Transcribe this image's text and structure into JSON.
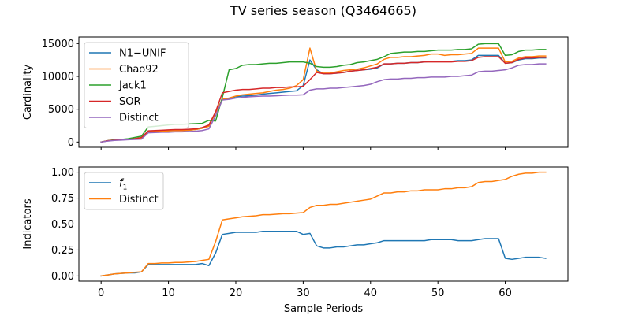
{
  "title": "TV series season (Q3464665)",
  "xlabel": "Sample Periods",
  "x_ticks": [
    0,
    10,
    20,
    30,
    40,
    50,
    60
  ],
  "chart_data": [
    {
      "type": "line",
      "ylabel": "Cardinality",
      "xlim": [
        -3.3,
        69.3
      ],
      "ylim": [
        -800,
        16000
      ],
      "y_ticks": [
        0,
        5000,
        10000,
        15000
      ],
      "legend_position": "upper left",
      "grid": false,
      "series": [
        {
          "name": "N1−UNIF",
          "color": "#1f77b4",
          "values": [
            0,
            200,
            300,
            350,
            400,
            500,
            600,
            1600,
            1600,
            1650,
            1700,
            1750,
            1750,
            1800,
            1900,
            2100,
            2400,
            4500,
            6500,
            6600,
            6900,
            7000,
            7050,
            7150,
            7300,
            7400,
            7500,
            7600,
            7700,
            7800,
            8600,
            12500,
            11000,
            10400,
            10400,
            10500,
            10600,
            10800,
            10900,
            11000,
            11100,
            11300,
            11900,
            11900,
            12000,
            12000,
            12100,
            12100,
            12200,
            12300,
            12300,
            12300,
            12300,
            12400,
            12400,
            12500,
            13200,
            13200,
            13200,
            13200,
            12000,
            12100,
            12500,
            12700,
            12700,
            12800,
            12800
          ]
        },
        {
          "name": "Chao92",
          "color": "#ff7f0e",
          "values": [
            0,
            200,
            300,
            350,
            400,
            500,
            600,
            1600,
            1600,
            1650,
            1700,
            1750,
            1750,
            1800,
            1900,
            2100,
            2400,
            4500,
            6500,
            6700,
            7000,
            7200,
            7300,
            7400,
            7500,
            7700,
            7900,
            8000,
            8200,
            8600,
            9500,
            14300,
            10800,
            10500,
            10500,
            10700,
            10900,
            11000,
            11100,
            11300,
            11600,
            11900,
            12600,
            12900,
            12900,
            13000,
            13000,
            13100,
            13200,
            13400,
            13400,
            13200,
            13300,
            13300,
            13400,
            13500,
            14300,
            14300,
            14300,
            14300,
            12200,
            12300,
            12800,
            13000,
            13000,
            13100,
            13100
          ]
        },
        {
          "name": "Jack1",
          "color": "#2ca02c",
          "values": [
            0,
            200,
            350,
            400,
            500,
            700,
            900,
            2300,
            2400,
            2500,
            2600,
            2700,
            2700,
            2750,
            2800,
            2850,
            3300,
            3200,
            6800,
            11000,
            11200,
            11700,
            11800,
            11800,
            11900,
            12000,
            12000,
            12100,
            12200,
            12200,
            12200,
            12000,
            11500,
            11400,
            11400,
            11500,
            11700,
            11800,
            12100,
            12200,
            12400,
            12600,
            13000,
            13500,
            13600,
            13700,
            13700,
            13800,
            13800,
            13900,
            14000,
            14000,
            14000,
            14100,
            14100,
            14200,
            14900,
            15000,
            15000,
            15000,
            13200,
            13300,
            13800,
            14000,
            14000,
            14100,
            14100
          ]
        },
        {
          "name": "SOR",
          "color": "#d62728",
          "values": [
            0,
            200,
            300,
            350,
            400,
            500,
            700,
            1700,
            1750,
            1800,
            1850,
            1900,
            1900,
            1950,
            2000,
            2200,
            2600,
            4600,
            7500,
            7700,
            7900,
            8000,
            8000,
            8100,
            8200,
            8200,
            8300,
            8300,
            8400,
            8400,
            8500,
            9500,
            10600,
            10400,
            10400,
            10500,
            10600,
            10800,
            10900,
            11000,
            11200,
            11400,
            11900,
            11900,
            12000,
            12000,
            12100,
            12100,
            12200,
            12200,
            12200,
            12200,
            12200,
            12300,
            12300,
            12400,
            12900,
            13000,
            13000,
            13000,
            12000,
            12100,
            12600,
            12800,
            12800,
            12900,
            12900
          ]
        },
        {
          "name": "Distinct",
          "color": "#9467bd",
          "values": [
            0,
            150,
            250,
            300,
            350,
            400,
            450,
            1400,
            1450,
            1500,
            1500,
            1550,
            1550,
            1600,
            1650,
            1750,
            2000,
            4000,
            6400,
            6500,
            6700,
            6800,
            6900,
            6950,
            7000,
            7000,
            7050,
            7100,
            7150,
            7150,
            7200,
            7900,
            8100,
            8100,
            8200,
            8200,
            8300,
            8400,
            8500,
            8600,
            8800,
            9200,
            9500,
            9600,
            9600,
            9700,
            9700,
            9800,
            9800,
            9900,
            9900,
            9900,
            10000,
            10000,
            10100,
            10200,
            10700,
            10800,
            10800,
            10900,
            11000,
            11300,
            11700,
            11800,
            11800,
            11900,
            11900
          ]
        }
      ]
    },
    {
      "type": "line",
      "ylabel": "Indicators",
      "xlim": [
        -3.3,
        69.3
      ],
      "ylim": [
        -0.05,
        1.05
      ],
      "y_ticks": [
        0.0,
        0.25,
        0.5,
        0.75,
        1.0
      ],
      "y_tick_labels": [
        "0.00",
        "0.25",
        "0.50",
        "0.75",
        "1.00"
      ],
      "legend_position": "upper left",
      "grid": false,
      "series": [
        {
          "name": "f1",
          "color": "#1f77b4",
          "values": [
            0,
            0.01,
            0.02,
            0.025,
            0.03,
            0.03,
            0.04,
            0.11,
            0.11,
            0.11,
            0.11,
            0.11,
            0.11,
            0.11,
            0.11,
            0.12,
            0.1,
            0.22,
            0.4,
            0.41,
            0.42,
            0.42,
            0.42,
            0.42,
            0.43,
            0.43,
            0.43,
            0.43,
            0.43,
            0.43,
            0.4,
            0.41,
            0.29,
            0.27,
            0.27,
            0.28,
            0.28,
            0.29,
            0.3,
            0.3,
            0.31,
            0.32,
            0.34,
            0.34,
            0.34,
            0.34,
            0.34,
            0.34,
            0.34,
            0.35,
            0.35,
            0.35,
            0.35,
            0.34,
            0.34,
            0.34,
            0.35,
            0.36,
            0.36,
            0.36,
            0.17,
            0.16,
            0.17,
            0.18,
            0.18,
            0.18,
            0.17
          ]
        },
        {
          "name": "Distinct",
          "color": "#ff7f0e",
          "values": [
            0,
            0.01,
            0.02,
            0.025,
            0.03,
            0.035,
            0.04,
            0.12,
            0.12,
            0.125,
            0.125,
            0.13,
            0.13,
            0.135,
            0.14,
            0.15,
            0.16,
            0.33,
            0.54,
            0.55,
            0.56,
            0.57,
            0.575,
            0.58,
            0.59,
            0.59,
            0.595,
            0.6,
            0.6,
            0.605,
            0.61,
            0.66,
            0.68,
            0.68,
            0.69,
            0.69,
            0.7,
            0.71,
            0.72,
            0.73,
            0.74,
            0.77,
            0.8,
            0.8,
            0.81,
            0.81,
            0.82,
            0.82,
            0.83,
            0.83,
            0.83,
            0.84,
            0.84,
            0.85,
            0.85,
            0.86,
            0.9,
            0.91,
            0.91,
            0.92,
            0.93,
            0.96,
            0.98,
            0.99,
            0.99,
            1.0,
            1.0
          ]
        }
      ]
    }
  ]
}
